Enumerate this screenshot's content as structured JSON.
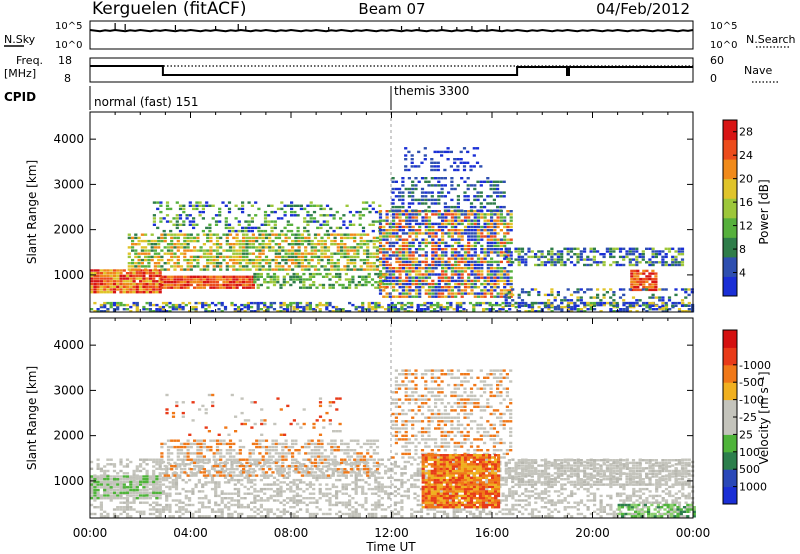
{
  "header": {
    "station": "Kerguelen (fitACF)",
    "beam": "Beam 07",
    "date": "04/Feb/2012"
  },
  "sky_panel": {
    "left_label": "N.Sky",
    "right_label": "N.Search",
    "left_ticks": [
      "10^5",
      "10^0"
    ],
    "right_ticks": [
      "10^5",
      "10^0"
    ]
  },
  "freq_panel": {
    "left_label_line1": "Freq.",
    "left_label_line2": "[MHz]",
    "right_label": "Nave",
    "left_ticks": [
      "18",
      "8"
    ],
    "right_ticks": [
      "60",
      "0"
    ]
  },
  "cpid_panel": {
    "label": "CPID",
    "segments": [
      {
        "start_hour": 0,
        "text": "normal (fast) 151"
      },
      {
        "start_hour": 12,
        "text": "themis 3300"
      }
    ]
  },
  "chart_data": [
    {
      "type": "heatmap",
      "name": "power",
      "ylabel": "Slant Range [km]",
      "xlabel": "",
      "ylim": [
        180,
        4600
      ],
      "yticks": [
        "1000",
        "2000",
        "3000",
        "4000"
      ],
      "colorbar": {
        "label": "Power [dB]",
        "ticks": [
          "4",
          "8",
          "12",
          "16",
          "20",
          "24",
          "28"
        ],
        "colors": [
          "#1a2fd6",
          "#2e4fb0",
          "#2f7d4a",
          "#56b03c",
          "#9dc73a",
          "#e0c42a",
          "#f08a1a",
          "#ec4c1c",
          "#d81414"
        ],
        "range": [
          0,
          30
        ]
      }
    },
    {
      "type": "heatmap",
      "name": "velocity",
      "ylabel": "Slant Range [km]",
      "xlabel": "Time UT",
      "ylim": [
        180,
        4600
      ],
      "yticks": [
        "1000",
        "2000",
        "3000",
        "4000"
      ],
      "colorbar": {
        "label": "Velocity [m s⁻¹]",
        "ticks": [
          "1000",
          "500",
          "100",
          "25",
          "-25",
          "-100",
          "-500",
          "-1000"
        ],
        "colors": [
          "#1a2fd6",
          "#2a48b8",
          "#2c7f4c",
          "#4fb43a",
          "#c4c4bc",
          "#c4c4bc",
          "#f0b020",
          "#f07818",
          "#e83a18",
          "#d41010"
        ]
      }
    }
  ],
  "time_axis": {
    "labels": [
      "00:00",
      "04:00",
      "08:00",
      "12:00",
      "16:00",
      "20:00",
      "00:00"
    ],
    "start_hour": 0,
    "end_hour": 24
  }
}
